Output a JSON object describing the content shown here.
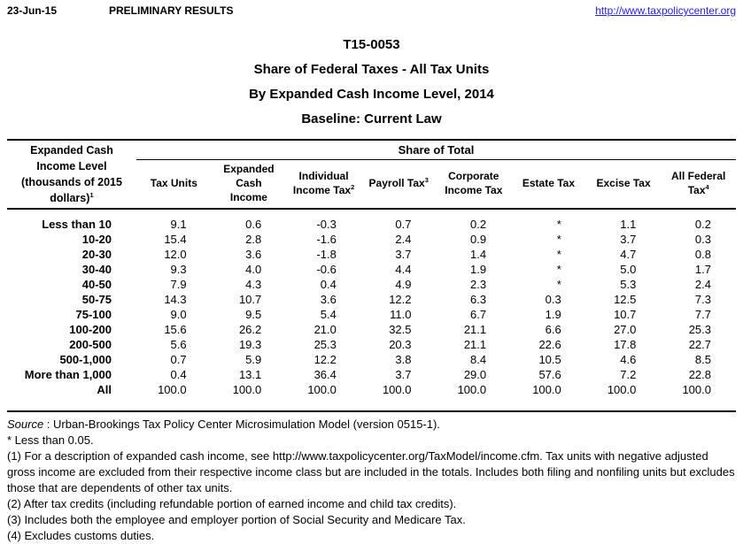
{
  "topbar": {
    "date": "23-Jun-15",
    "preliminary": "PRELIMINARY RESULTS",
    "link": "http://www.taxpolicycenter.org",
    "link_color": "#1f1fe8"
  },
  "titles": [
    "T15-0053",
    "Share of Federal Taxes - All Tax Units",
    "By Expanded Cash Income Level, 2014",
    "Baseline: Current Law"
  ],
  "table": {
    "stub_header": {
      "lines": [
        "Expanded Cash",
        "Income Level",
        "(thousands of 2015",
        "dollars)"
      ],
      "sup": "1"
    },
    "span_header": "Share of Total",
    "columns": [
      {
        "lines": [
          "Tax Units"
        ],
        "sup": ""
      },
      {
        "lines": [
          "Expanded Cash",
          "Income"
        ],
        "sup": ""
      },
      {
        "lines": [
          "Individual",
          "Income Tax"
        ],
        "sup": "2"
      },
      {
        "lines": [
          "Payroll Tax"
        ],
        "sup": "3"
      },
      {
        "lines": [
          "Corporate",
          "Income Tax"
        ],
        "sup": ""
      },
      {
        "lines": [
          "Estate Tax"
        ],
        "sup": ""
      },
      {
        "lines": [
          "Excise Tax"
        ],
        "sup": ""
      },
      {
        "lines": [
          "All Federal",
          "Tax"
        ],
        "sup": "4"
      }
    ],
    "rows": [
      {
        "label": "Less than 10",
        "values": [
          "9.1",
          "0.6",
          "-0.3",
          "0.7",
          "0.2",
          "*",
          "1.1",
          "0.2"
        ]
      },
      {
        "label": "10-20",
        "values": [
          "15.4",
          "2.8",
          "-1.6",
          "2.4",
          "0.9",
          "*",
          "3.7",
          "0.3"
        ]
      },
      {
        "label": "20-30",
        "values": [
          "12.0",
          "3.6",
          "-1.8",
          "3.7",
          "1.4",
          "*",
          "4.7",
          "0.8"
        ]
      },
      {
        "label": "30-40",
        "values": [
          "9.3",
          "4.0",
          "-0.6",
          "4.4",
          "1.9",
          "*",
          "5.0",
          "1.7"
        ]
      },
      {
        "label": "40-50",
        "values": [
          "7.9",
          "4.3",
          "0.4",
          "4.9",
          "2.3",
          "*",
          "5.3",
          "2.4"
        ]
      },
      {
        "label": "50-75",
        "values": [
          "14.3",
          "10.7",
          "3.6",
          "12.2",
          "6.3",
          "0.3",
          "12.5",
          "7.3"
        ]
      },
      {
        "label": "75-100",
        "values": [
          "9.0",
          "9.5",
          "5.4",
          "11.0",
          "6.7",
          "1.9",
          "10.7",
          "7.7"
        ]
      },
      {
        "label": "100-200",
        "values": [
          "15.6",
          "26.2",
          "21.0",
          "32.5",
          "21.1",
          "6.6",
          "27.0",
          "25.3"
        ]
      },
      {
        "label": "200-500",
        "values": [
          "5.6",
          "19.3",
          "25.3",
          "20.3",
          "21.1",
          "22.6",
          "17.8",
          "22.7"
        ]
      },
      {
        "label": "500-1,000",
        "values": [
          "0.7",
          "5.9",
          "12.2",
          "3.8",
          "8.4",
          "10.5",
          "4.6",
          "8.5"
        ]
      },
      {
        "label": "More than 1,000",
        "values": [
          "0.4",
          "13.1",
          "36.4",
          "3.7",
          "29.0",
          "57.6",
          "7.2",
          "22.8"
        ]
      },
      {
        "label": "All",
        "values": [
          "100.0",
          "100.0",
          "100.0",
          "100.0",
          "100.0",
          "100.0",
          "100.0",
          "100.0"
        ]
      }
    ]
  },
  "footnotes": {
    "source_label": "Source",
    "source_text": " : Urban-Brookings Tax Policy Center Microsimulation Model (version 0515-1).",
    "notes": [
      "* Less than 0.05.",
      "(1) For a description of expanded cash income, see http://www.taxpolicycenter.org/TaxModel/income.cfm. Tax units with negative adjusted gross income are excluded from their respective income class but are included in the totals. Includes both filing and nonfiling units but excludes those that are dependents of other tax units.",
      "(2) After tax credits (including refundable portion of earned income and child tax credits).",
      "(3) Includes both the employee and employer portion of Social Security and Medicare Tax.",
      "(4) Excludes customs duties."
    ]
  }
}
